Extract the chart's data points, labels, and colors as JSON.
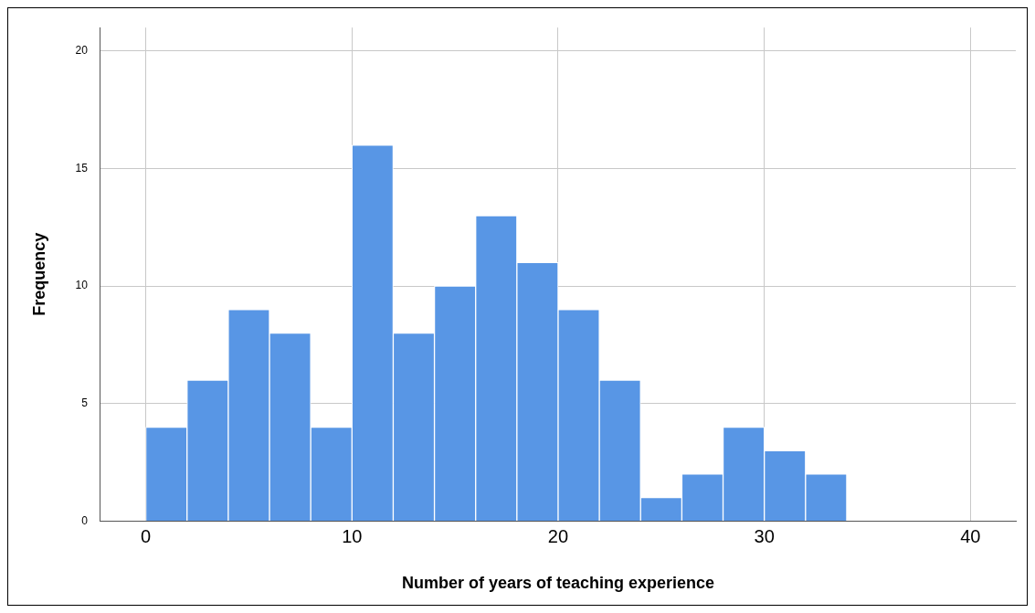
{
  "chart_data": {
    "type": "histogram",
    "xlabel": "Number of years of teaching experience",
    "ylabel": "Frequency",
    "bins": [
      0,
      2,
      4,
      6,
      8,
      10,
      12,
      14,
      16,
      18,
      20,
      22,
      24,
      26,
      28,
      30,
      32,
      34
    ],
    "values": [
      4,
      6,
      9,
      8,
      4,
      16,
      8,
      10,
      13,
      11,
      9,
      6,
      1,
      2,
      4,
      3,
      2
    ],
    "color": "#5896e5",
    "xlim": [
      -2.2,
      42.2
    ],
    "xticks": [
      0,
      10,
      20,
      30,
      40
    ],
    "ylim": [
      0,
      21
    ],
    "yticks": [
      0,
      5,
      10,
      15,
      20
    ],
    "grid": true
  }
}
